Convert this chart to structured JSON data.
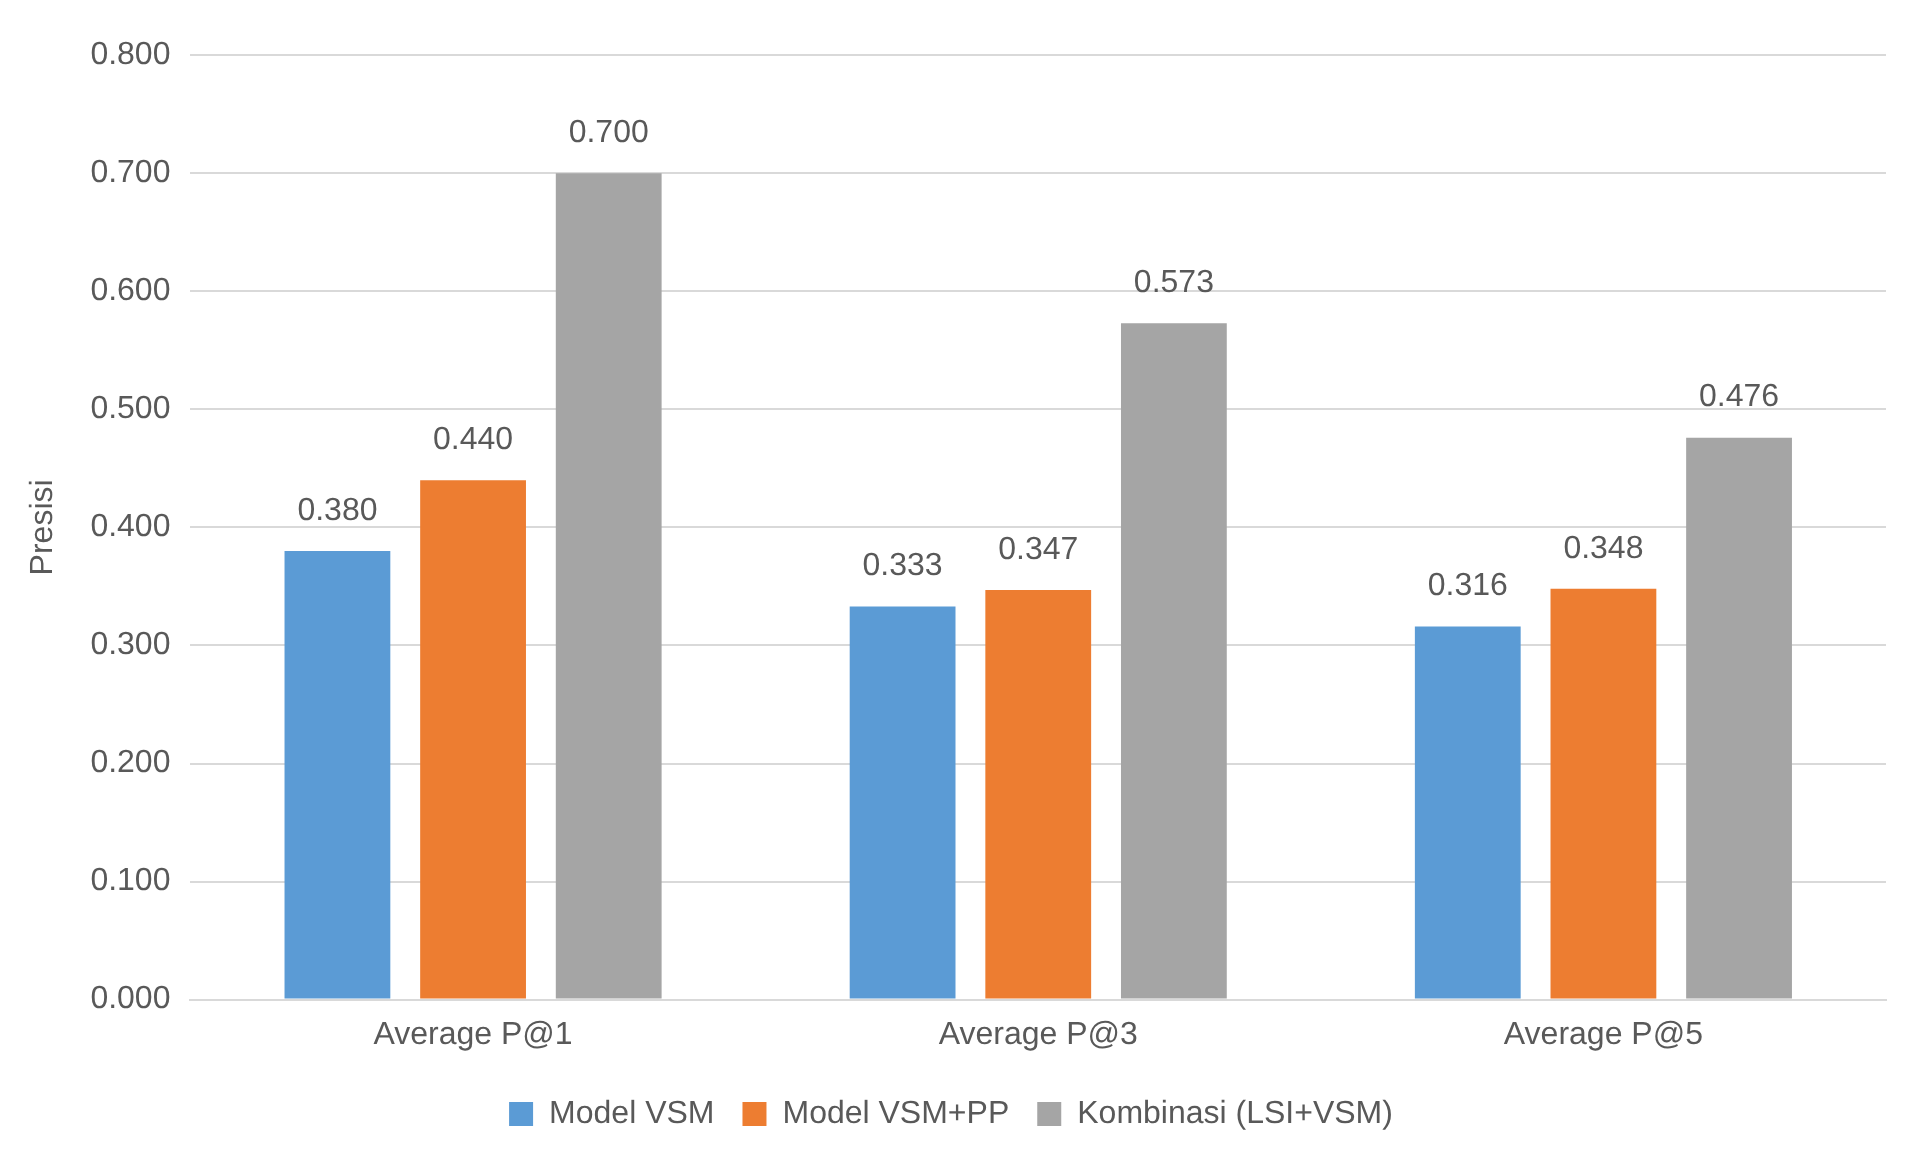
{
  "chart_data": {
    "type": "bar",
    "ylabel": "Presisi",
    "categories": [
      "Average P@1",
      "Average P@3",
      "Average P@5"
    ],
    "series": [
      {
        "name": "Model VSM",
        "color": "#5b9bd5",
        "values": [
          0.38,
          0.333,
          0.316
        ],
        "value_labels": [
          "0.380",
          "0.333",
          "0.316"
        ]
      },
      {
        "name": "Model VSM+PP",
        "color": "#ed7d31",
        "values": [
          0.44,
          0.347,
          0.348
        ],
        "value_labels": [
          "0.440",
          "0.347",
          "0.348"
        ]
      },
      {
        "name": "Kombinasi (LSI+VSM)",
        "color": "#a5a5a5",
        "values": [
          0.7,
          0.573,
          0.476
        ],
        "value_labels": [
          "0.700",
          "0.573",
          "0.476"
        ]
      }
    ],
    "ylim": [
      0,
      0.8
    ],
    "yticks": [
      {
        "value": 0,
        "label": "0.000"
      },
      {
        "value": 0.1,
        "label": "0.100"
      },
      {
        "value": 0.2,
        "label": "0.200"
      },
      {
        "value": 0.3,
        "label": "0.300"
      },
      {
        "value": 0.4,
        "label": "0.400"
      },
      {
        "value": 0.5,
        "label": "0.500"
      },
      {
        "value": 0.6,
        "label": "0.600"
      },
      {
        "value": 0.7,
        "label": "0.700"
      },
      {
        "value": 0.8,
        "label": "0.800"
      }
    ],
    "grid": "y",
    "legend": "bottom"
  }
}
